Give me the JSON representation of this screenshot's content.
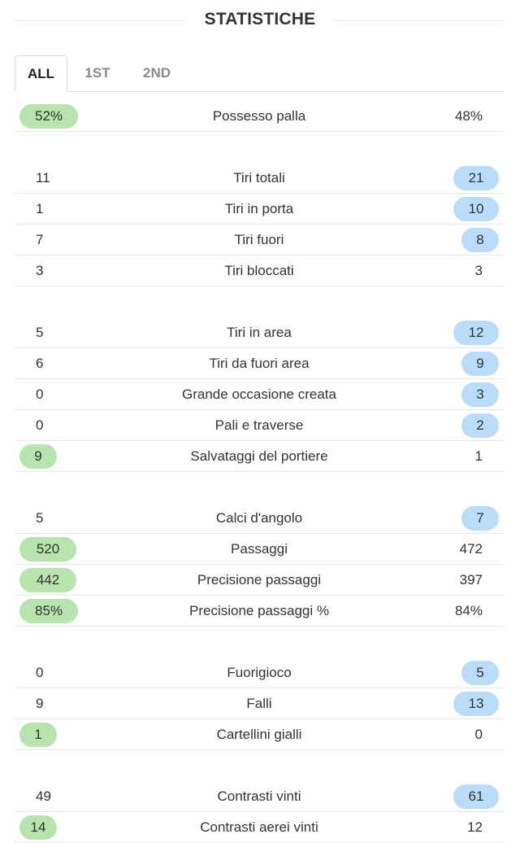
{
  "header": {
    "title": "STATISTICHE"
  },
  "tabs": [
    {
      "label": "ALL"
    },
    {
      "label": "1ST"
    },
    {
      "label": "2ND"
    }
  ],
  "colors": {
    "home_highlight": "#b7e4ad",
    "away_highlight": "#b9dcfb"
  },
  "stats": [
    {
      "label": "Possesso palla",
      "home": "52%",
      "away": "48%",
      "highlight": "home"
    },
    {
      "label": "Tiri totali",
      "home": "11",
      "away": "21",
      "highlight": "away"
    },
    {
      "label": "Tiri in porta",
      "home": "1",
      "away": "10",
      "highlight": "away"
    },
    {
      "label": "Tiri fuori",
      "home": "7",
      "away": "8",
      "highlight": "away"
    },
    {
      "label": "Tiri bloccati",
      "home": "3",
      "away": "3",
      "highlight": "none"
    },
    {
      "label": "Tiri in area",
      "home": "5",
      "away": "12",
      "highlight": "away"
    },
    {
      "label": "Tiri da fuori area",
      "home": "6",
      "away": "9",
      "highlight": "away"
    },
    {
      "label": "Grande occasione creata",
      "home": "0",
      "away": "3",
      "highlight": "away"
    },
    {
      "label": "Pali e traverse",
      "home": "0",
      "away": "2",
      "highlight": "away"
    },
    {
      "label": "Salvataggi del portiere",
      "home": "9",
      "away": "1",
      "highlight": "home"
    },
    {
      "label": "Calci d'angolo",
      "home": "5",
      "away": "7",
      "highlight": "away"
    },
    {
      "label": "Passaggi",
      "home": "520",
      "away": "472",
      "highlight": "home"
    },
    {
      "label": "Precisione passaggi",
      "home": "442",
      "away": "397",
      "highlight": "home"
    },
    {
      "label": "Precisione passaggi %",
      "home": "85%",
      "away": "84%",
      "highlight": "home"
    },
    {
      "label": "Fuorigioco",
      "home": "0",
      "away": "5",
      "highlight": "away"
    },
    {
      "label": "Falli",
      "home": "9",
      "away": "13",
      "highlight": "away"
    },
    {
      "label": "Cartellini gialli",
      "home": "1",
      "away": "0",
      "highlight": "home"
    },
    {
      "label": "Contrasti vinti",
      "home": "49",
      "away": "61",
      "highlight": "away"
    },
    {
      "label": "Contrasti aerei vinti",
      "home": "14",
      "away": "12",
      "highlight": "home"
    }
  ]
}
